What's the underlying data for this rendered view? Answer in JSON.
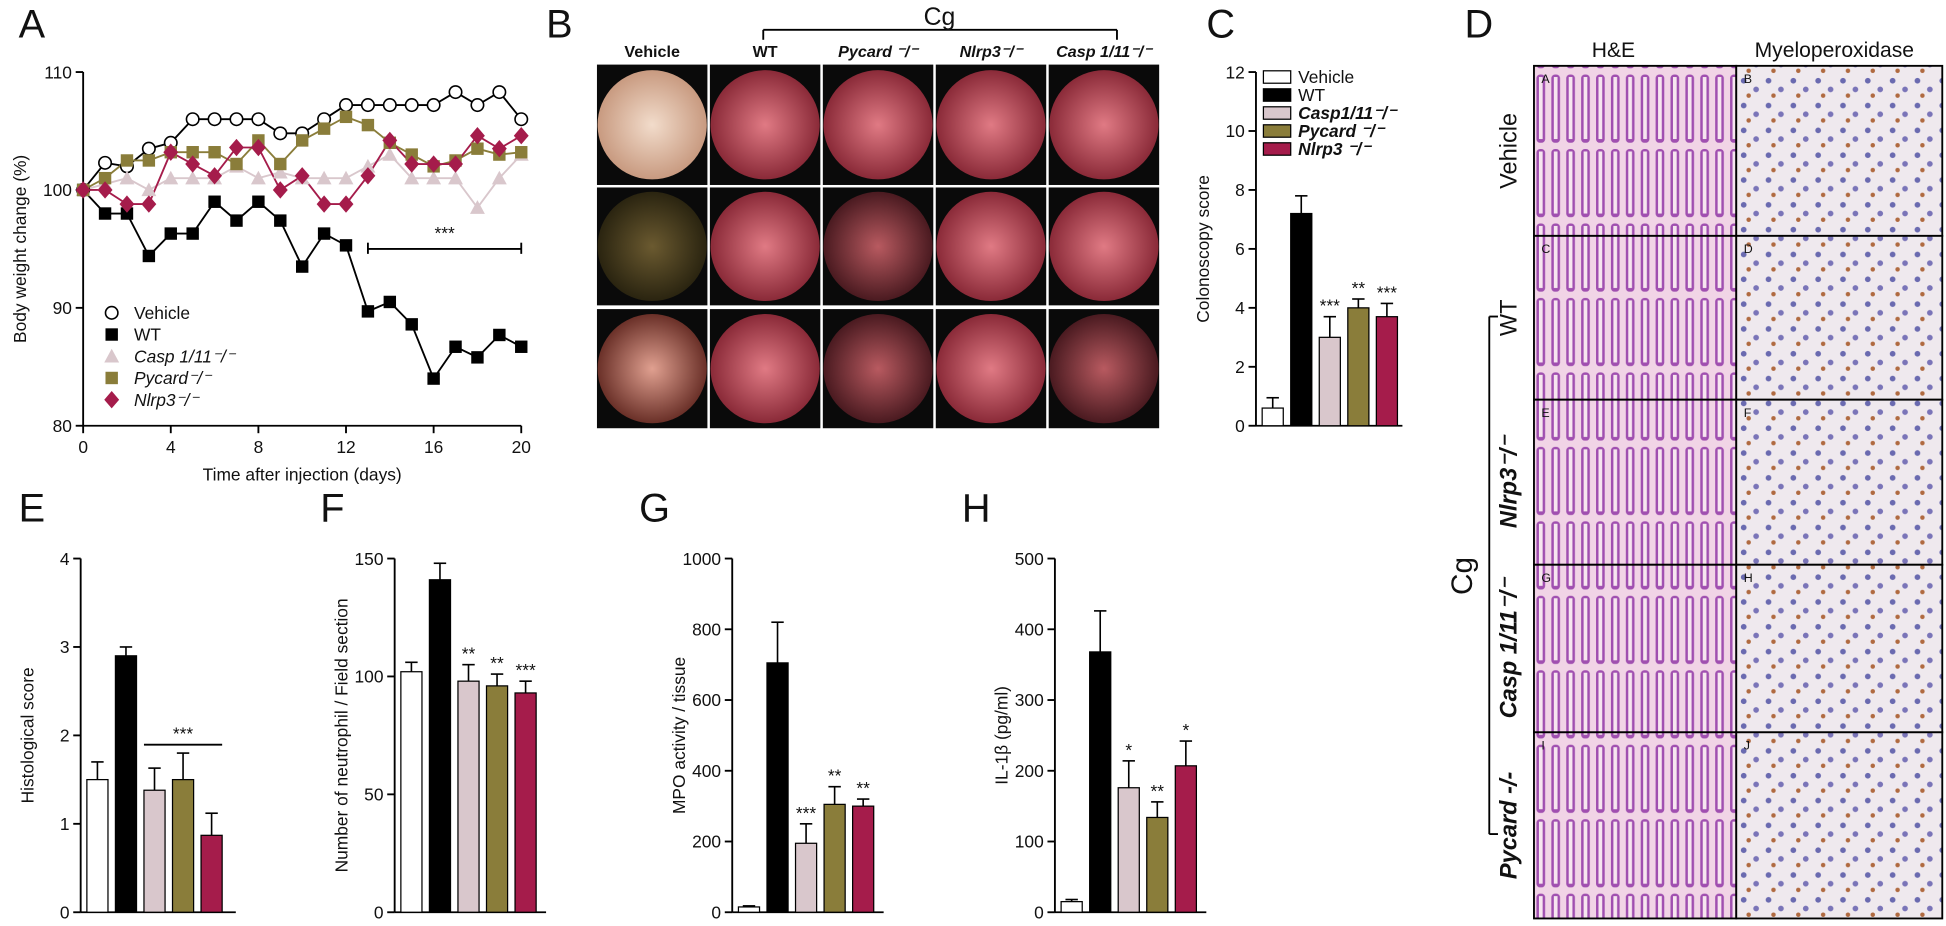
{
  "chart_data": [
    {
      "type": "line",
      "panel": "A",
      "x": [
        0,
        1,
        2,
        3,
        4,
        5,
        6,
        7,
        8,
        9,
        10,
        11,
        12,
        13,
        14,
        15,
        16,
        17,
        18,
        19,
        20
      ],
      "xlim": [
        0,
        20
      ],
      "xticks": [
        0,
        4,
        8,
        12,
        16,
        20
      ],
      "ylim": [
        80,
        110
      ],
      "yticks": [
        80,
        90,
        100,
        110
      ],
      "xlabel": "Time after injection (days)",
      "ylabel": "Body weight change (%)",
      "annotation": "***",
      "series": [
        {
          "name": "Vehicle",
          "color": "#000000",
          "marker": "circle-open",
          "values": [
            100,
            102.3,
            102,
            103.5,
            104,
            106,
            106,
            106,
            106,
            104.8,
            104.8,
            106,
            107.2,
            107.2,
            107.2,
            107.2,
            107.2,
            108.3,
            107.2,
            108.3,
            106
          ]
        },
        {
          "name": "WT",
          "color": "#000000",
          "marker": "square",
          "values": [
            100,
            98,
            98,
            94.4,
            96.3,
            96.3,
            99,
            97.4,
            99,
            97.4,
            93.5,
            96.3,
            95.3,
            89.7,
            90.5,
            88.6,
            84,
            86.7,
            85.8,
            87.7,
            86.7
          ]
        },
        {
          "name": "Casp 1/11⁻/⁻",
          "color": "#d9c7cc",
          "marker": "triangle",
          "values": [
            100,
            100.5,
            101,
            100,
            101,
            101,
            101,
            102,
            101,
            101.5,
            101,
            101,
            101,
            102,
            103,
            101,
            101,
            101,
            98.5,
            101,
            103
          ]
        },
        {
          "name": "Pycard⁻/⁻",
          "color": "#8a7d3a",
          "marker": "square",
          "values": [
            100,
            101,
            102.5,
            102.5,
            103.2,
            103.2,
            103.2,
            102.2,
            104.2,
            102.2,
            104.2,
            105.2,
            106.2,
            105.5,
            104,
            103,
            102,
            102.5,
            103.5,
            103,
            103.2
          ]
        },
        {
          "name": "Nlrp3⁻/⁻",
          "color": "#a51c4b",
          "marker": "diamond",
          "values": [
            100,
            100,
            98.8,
            98.8,
            103.2,
            102.2,
            101.2,
            103.6,
            103.6,
            100,
            101.2,
            98.8,
            98.8,
            101.2,
            104.2,
            102.2,
            102.2,
            102.2,
            104.6,
            103.5,
            104.6
          ]
        }
      ]
    },
    {
      "type": "bar",
      "panel": "C",
      "ylabel": "Colonoscopy score",
      "ylim": [
        0,
        12
      ],
      "yticks": [
        0,
        2,
        4,
        6,
        8,
        10,
        12
      ],
      "values": [
        0.6,
        7.2,
        3.0,
        4.0,
        3.7
      ],
      "errors": [
        0.35,
        0.6,
        0.7,
        0.3,
        0.45
      ],
      "colors": [
        "#ffffff",
        "#000000",
        "#d9c7cc",
        "#8a7d3a",
        "#a51c4b"
      ],
      "annotations": [
        null,
        null,
        "***",
        "**",
        "***"
      ],
      "legend": [
        "Vehicle",
        "WT",
        "Casp1/11⁻/⁻",
        "Pycard ⁻/⁻",
        "Nlrp3 ⁻/⁻"
      ]
    },
    {
      "type": "bar",
      "panel": "E",
      "ylabel": "Histological score",
      "ylim": [
        0,
        4
      ],
      "yticks": [
        0,
        1,
        2,
        3,
        4
      ],
      "values": [
        1.5,
        2.9,
        1.38,
        1.5,
        0.87
      ],
      "errors": [
        0.2,
        0.1,
        0.25,
        0.3,
        0.25
      ],
      "colors": [
        "#ffffff",
        "#000000",
        "#d9c7cc",
        "#8a7d3a",
        "#a51c4b"
      ],
      "bracket": "***"
    },
    {
      "type": "bar",
      "panel": "F",
      "ylabel": "Number of neutrophil / Field section",
      "ylim": [
        0,
        150
      ],
      "yticks": [
        0,
        50,
        100,
        150
      ],
      "values": [
        102,
        141,
        98,
        96,
        93
      ],
      "errors": [
        4,
        7,
        7,
        5,
        5
      ],
      "colors": [
        "#ffffff",
        "#000000",
        "#d9c7cc",
        "#8a7d3a",
        "#a51c4b"
      ],
      "annotations": [
        null,
        null,
        "**",
        "**",
        "***"
      ]
    },
    {
      "type": "bar",
      "panel": "G",
      "ylabel": "MPO activity / tissue",
      "ylim": [
        0,
        1000
      ],
      "yticks": [
        0,
        200,
        400,
        600,
        800,
        1000
      ],
      "values": [
        15,
        705,
        195,
        305,
        300
      ],
      "errors": [
        3,
        115,
        55,
        50,
        20
      ],
      "colors": [
        "#ffffff",
        "#000000",
        "#d9c7cc",
        "#8a7d3a",
        "#a51c4b"
      ],
      "annotations": [
        null,
        null,
        "***",
        "**",
        "**"
      ]
    },
    {
      "type": "bar",
      "panel": "H",
      "ylabel": "IL-1β (pg/ml)",
      "ylim": [
        0,
        500
      ],
      "yticks": [
        0,
        100,
        200,
        300,
        400,
        500
      ],
      "values": [
        15,
        368,
        176,
        134,
        207
      ],
      "errors": [
        3,
        58,
        38,
        22,
        35
      ],
      "colors": [
        "#ffffff",
        "#000000",
        "#d9c7cc",
        "#8a7d3a",
        "#a51c4b"
      ],
      "annotations": [
        null,
        null,
        "*",
        "**",
        "*"
      ]
    }
  ],
  "panel_B": {
    "label": "B",
    "group": "Cg",
    "columns": [
      "Vehicle",
      "WT",
      "Pycard ⁻/⁻",
      "Nlrp3⁻/⁻",
      "Casp 1/11⁻/⁻"
    ]
  },
  "panel_D": {
    "label": "D",
    "columns": [
      "H&E",
      "Myeloperoxidase"
    ],
    "rows": [
      "Vehicle",
      "WT",
      "Nlrp3⁻/⁻",
      "Casp 1/11⁻/⁻",
      "Pycard -/-"
    ],
    "group": "Cg",
    "cells": [
      "A",
      "B",
      "C",
      "D",
      "E",
      "F",
      "G",
      "H",
      "I",
      "J"
    ]
  }
}
